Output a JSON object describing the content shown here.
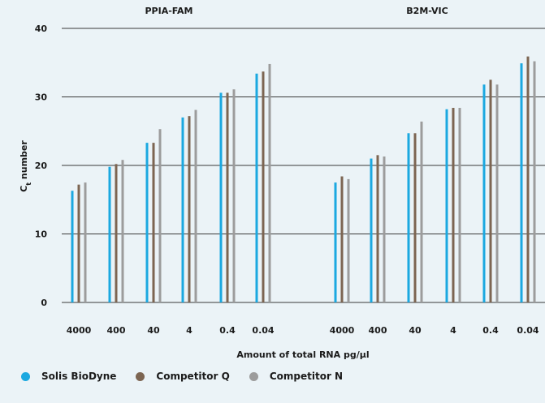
{
  "chart_data": {
    "type": "bar",
    "ylabel": "Ct number",
    "xlabel": "Amount of total RNA pg/µl",
    "ylim": [
      0,
      40
    ],
    "yticks": [
      0,
      10,
      20,
      30,
      40
    ],
    "grid": true,
    "legend_position": "bottom-left",
    "groups": [
      {
        "title": "PPIA-FAM",
        "categories": [
          "4000",
          "400",
          "40",
          "4",
          "0.4",
          "0.04"
        ],
        "series": [
          {
            "name": "Solis BioDyne",
            "values": [
              16.3,
              19.8,
              23.3,
              27.0,
              30.6,
              33.4
            ]
          },
          {
            "name": "Competitor Q",
            "values": [
              17.2,
              20.2,
              23.3,
              27.2,
              30.6,
              33.7
            ]
          },
          {
            "name": "Competitor N",
            "values": [
              17.5,
              20.8,
              25.3,
              28.1,
              31.1,
              34.8
            ]
          }
        ]
      },
      {
        "title": "B2M-VIC",
        "categories": [
          "4000",
          "400",
          "40",
          "4",
          "0.4",
          "0.04"
        ],
        "series": [
          {
            "name": "Solis BioDyne",
            "values": [
              17.5,
              21.0,
              24.7,
              28.2,
              31.8,
              34.9
            ]
          },
          {
            "name": "Competitor Q",
            "values": [
              18.4,
              21.5,
              24.7,
              28.4,
              32.5,
              35.9
            ]
          },
          {
            "name": "Competitor N",
            "values": [
              18.0,
              21.3,
              26.4,
              28.4,
              31.8,
              35.2
            ]
          }
        ]
      }
    ],
    "colors": {
      "Solis BioDyne": "#1ba8e0",
      "Competitor Q": "#7c6552",
      "Competitor N": "#9c9c9c"
    }
  }
}
